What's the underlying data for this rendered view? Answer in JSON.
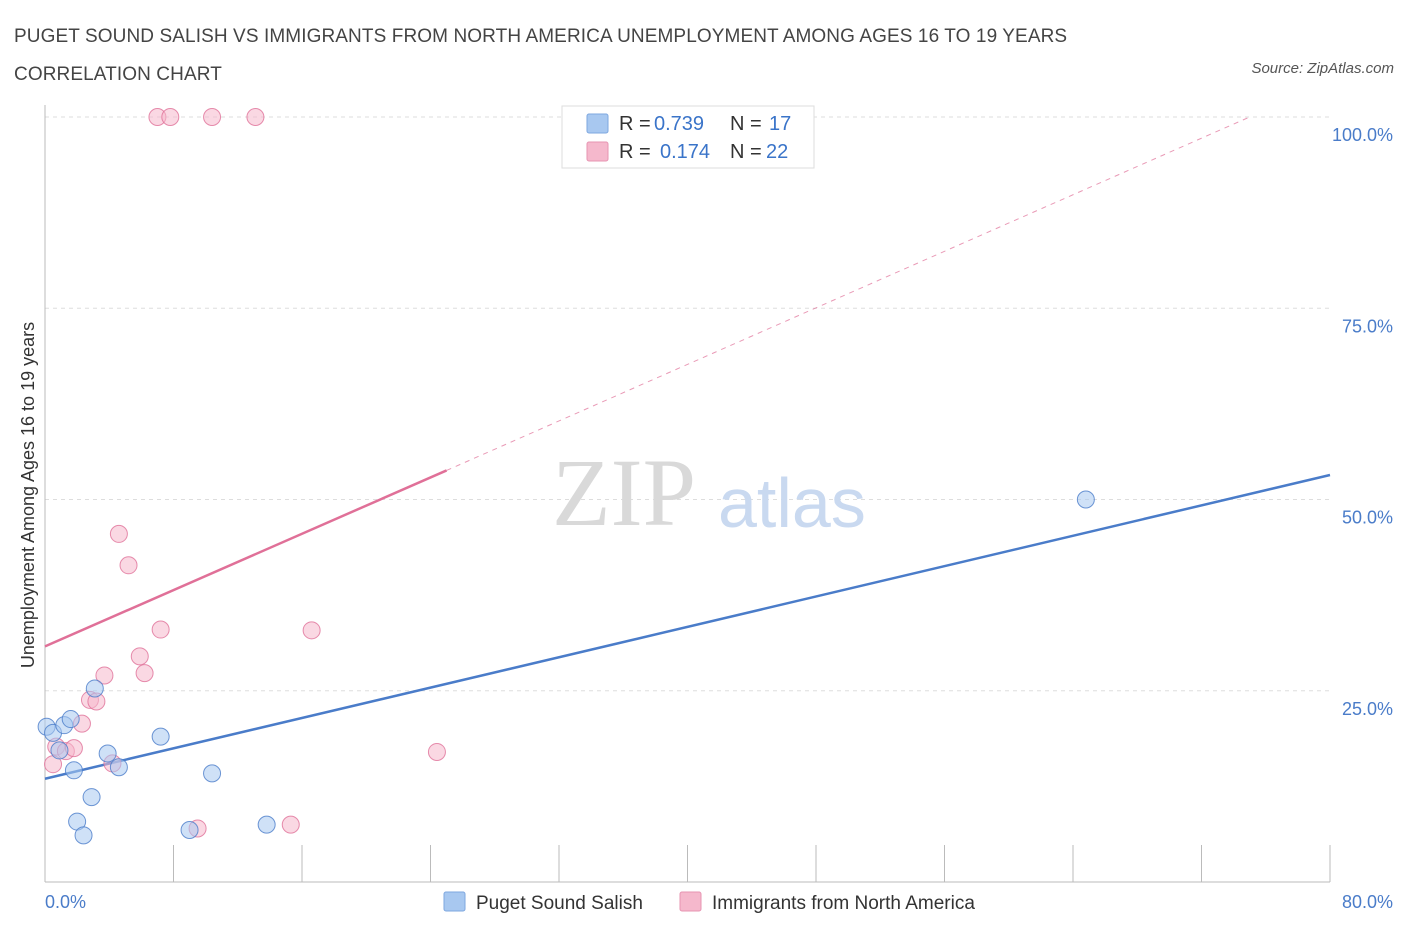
{
  "title": "PUGET SOUND SALISH VS IMMIGRANTS FROM NORTH AMERICA UNEMPLOYMENT AMONG AGES 16 TO 19 YEARS CORRELATION CHART",
  "source": "Source: ZipAtlas.com",
  "watermark": {
    "zip": "ZIP",
    "atlas": "atlas"
  },
  "colors": {
    "blue": "#4a7cc9",
    "blue_fill": "#a8c8f0",
    "pink": "#e07098",
    "pink_fill": "#f5b8cc",
    "grid": "#dddddd"
  },
  "legend": {
    "rows": [
      {
        "r_label": "R =",
        "r_value": "0.739",
        "n_label": "N =",
        "n_value": "17"
      },
      {
        "r_label": "R =",
        "r_value": "0.174",
        "n_label": "N =",
        "n_value": "22"
      }
    ]
  },
  "chart_data": {
    "type": "scatter",
    "title": "PUGET SOUND SALISH VS IMMIGRANTS FROM NORTH AMERICA UNEMPLOYMENT AMONG AGES 16 TO 19 YEARS CORRELATION CHART",
    "xlabel": "",
    "ylabel": "Unemployment Among Ages 16 to 19 years",
    "xlim": [
      0,
      80
    ],
    "ylim": [
      0,
      100
    ],
    "x_tick_labels": [
      "0.0%",
      "80.0%"
    ],
    "y_tick_labels": [
      "25.0%",
      "50.0%",
      "75.0%",
      "100.0%"
    ],
    "y_ticks": [
      25,
      50,
      75,
      100
    ],
    "grid": true,
    "legend_position": "bottom",
    "series": [
      {
        "name": "Puget Sound Salish",
        "color": "#4a7cc9",
        "points": [
          [
            0.1,
            20.3
          ],
          [
            0.5,
            19.5
          ],
          [
            0.9,
            17.2
          ],
          [
            1.2,
            20.5
          ],
          [
            1.6,
            21.3
          ],
          [
            1.8,
            14.6
          ],
          [
            2.0,
            7.9
          ],
          [
            2.4,
            6.1
          ],
          [
            2.9,
            11.1
          ],
          [
            3.1,
            25.3
          ],
          [
            3.9,
            16.8
          ],
          [
            4.6,
            15.0
          ],
          [
            7.2,
            19.0
          ],
          [
            9.0,
            6.8
          ],
          [
            10.4,
            14.2
          ],
          [
            13.8,
            7.5
          ],
          [
            64.8,
            50.0
          ]
        ],
        "trend": {
          "x": [
            0,
            80
          ],
          "y": [
            13.5,
            53.2
          ],
          "style": "solid"
        }
      },
      {
        "name": "Immigrants from North America",
        "color": "#e07098",
        "points": [
          [
            0.5,
            15.4
          ],
          [
            0.7,
            17.7
          ],
          [
            1.3,
            17.1
          ],
          [
            1.8,
            17.5
          ],
          [
            2.3,
            20.7
          ],
          [
            2.8,
            23.8
          ],
          [
            3.2,
            23.6
          ],
          [
            3.7,
            27.0
          ],
          [
            4.2,
            15.5
          ],
          [
            4.6,
            45.5
          ],
          [
            5.2,
            41.4
          ],
          [
            5.9,
            29.5
          ],
          [
            6.2,
            27.3
          ],
          [
            7.2,
            33.0
          ],
          [
            7.0,
            100.0
          ],
          [
            7.8,
            100.0
          ],
          [
            9.5,
            7.0
          ],
          [
            10.4,
            100.0
          ],
          [
            13.1,
            100.0
          ],
          [
            15.3,
            7.5
          ],
          [
            16.6,
            32.9
          ],
          [
            24.4,
            17.0
          ]
        ],
        "trend": {
          "x": [
            0,
            25
          ],
          "y": [
            30.8,
            53.8
          ],
          "style": "solid",
          "extension": {
            "x": [
              25,
              75
            ],
            "y": [
              53.8,
              100.0
            ],
            "style": "dashed"
          }
        }
      }
    ]
  }
}
